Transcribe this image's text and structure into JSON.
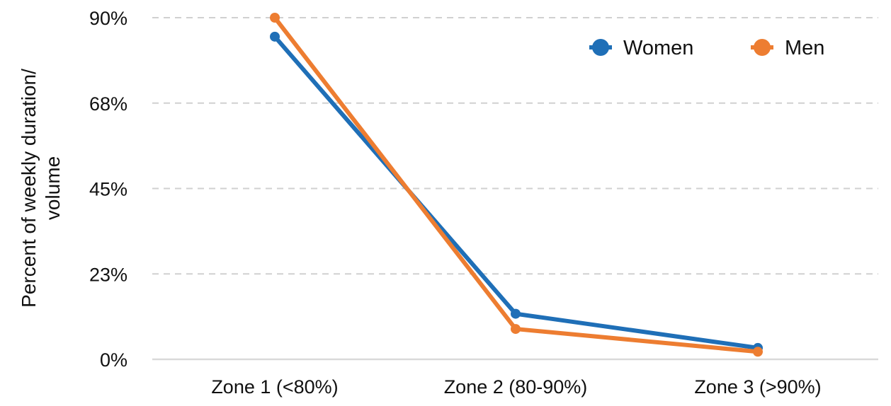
{
  "chart_data": {
    "type": "line",
    "title": "",
    "xlabel": "",
    "ylabel_lines": [
      "Percent of weekly duration/",
      "volume"
    ],
    "categories": [
      "Zone 1 (<80%)",
      "Zone 2 (80-90%)",
      "Zone 3 (>90%)"
    ],
    "yticks": [
      {
        "value": 0,
        "label": "0%"
      },
      {
        "value": 22.5,
        "label": "23%"
      },
      {
        "value": 45,
        "label": "45%"
      },
      {
        "value": 67.5,
        "label": "68%"
      },
      {
        "value": 90,
        "label": "90%"
      }
    ],
    "ylim": [
      0,
      90
    ],
    "grid": true,
    "legend_position": "top-right",
    "series": [
      {
        "name": "Women",
        "color": "#1f6fb7",
        "values": [
          85,
          12,
          3
        ]
      },
      {
        "name": "Men",
        "color": "#ed7d31",
        "values": [
          90,
          8,
          2
        ]
      }
    ]
  }
}
